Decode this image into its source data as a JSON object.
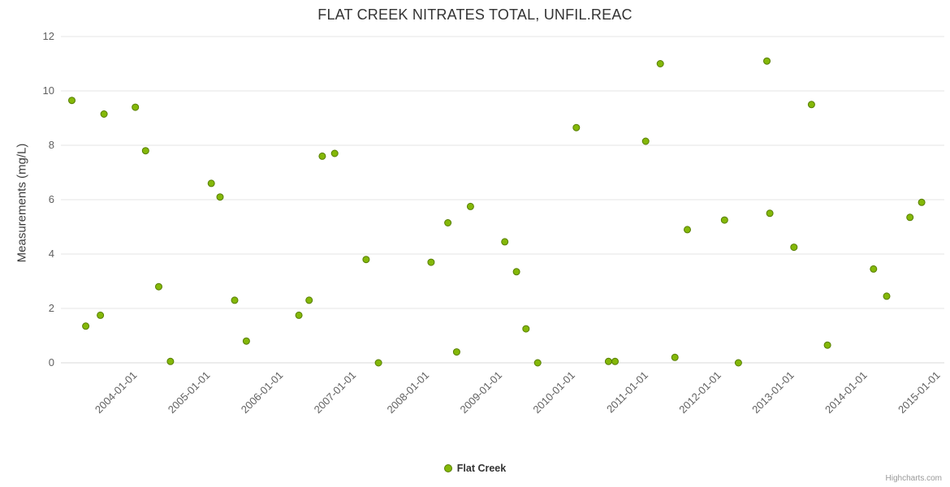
{
  "title": "FLAT CREEK NITRATES TOTAL, UNFIL.REAC",
  "y_axis_title": "Measurements (mg/L)",
  "legend": {
    "label": "Flat Creek"
  },
  "credits": "Highcharts.com",
  "colors": {
    "point_fill": "#84b808",
    "point_stroke": "#567d00",
    "grid": "#e6e6e6",
    "axis_line": "#d8d8d8",
    "axis_text": "#606060",
    "title_text": "#333333"
  },
  "chart_data": {
    "type": "scatter",
    "title": "FLAT CREEK NITRATES TOTAL, UNFIL.REAC",
    "xlabel": "",
    "ylabel": "Measurements (mg/L)",
    "x_unit": "decimal_year",
    "xlim": [
      2002.95,
      2015.05
    ],
    "ylim": [
      0,
      12
    ],
    "y_ticks": [
      0,
      2,
      4,
      6,
      8,
      10,
      12
    ],
    "x_ticks": [
      2004,
      2005,
      2006,
      2007,
      2008,
      2009,
      2010,
      2011,
      2012,
      2013,
      2014,
      2015
    ],
    "x_tick_labels": [
      "2004-01-01",
      "2005-01-01",
      "2006-01-01",
      "2007-01-01",
      "2008-01-01",
      "2009-01-01",
      "2010-01-01",
      "2011-01-01",
      "2012-01-01",
      "2013-01-01",
      "2014-01-01",
      "2015-01-01"
    ],
    "grid": "horizontal",
    "legend_position": "bottom-center",
    "series": [
      {
        "name": "Flat Creek",
        "points": [
          [
            2003.1,
            9.65
          ],
          [
            2003.29,
            1.35
          ],
          [
            2003.49,
            1.75
          ],
          [
            2003.54,
            9.15
          ],
          [
            2003.97,
            9.4
          ],
          [
            2004.11,
            7.8
          ],
          [
            2004.29,
            2.8
          ],
          [
            2004.45,
            0.05
          ],
          [
            2005.01,
            6.6
          ],
          [
            2005.13,
            6.1
          ],
          [
            2005.33,
            2.3
          ],
          [
            2005.49,
            0.8
          ],
          [
            2006.21,
            1.75
          ],
          [
            2006.35,
            2.3
          ],
          [
            2006.53,
            7.6
          ],
          [
            2006.7,
            7.7
          ],
          [
            2007.13,
            3.8
          ],
          [
            2007.3,
            0.0
          ],
          [
            2008.02,
            3.7
          ],
          [
            2008.25,
            5.15
          ],
          [
            2008.37,
            0.4
          ],
          [
            2008.56,
            5.75
          ],
          [
            2009.03,
            4.45
          ],
          [
            2009.19,
            3.35
          ],
          [
            2009.32,
            1.25
          ],
          [
            2009.48,
            0.0
          ],
          [
            2010.01,
            8.65
          ],
          [
            2010.45,
            0.05
          ],
          [
            2010.54,
            0.05
          ],
          [
            2010.96,
            8.15
          ],
          [
            2011.16,
            11.0
          ],
          [
            2011.36,
            0.2
          ],
          [
            2011.53,
            4.9
          ],
          [
            2012.04,
            5.25
          ],
          [
            2012.23,
            0.0
          ],
          [
            2012.62,
            11.1
          ],
          [
            2012.66,
            5.5
          ],
          [
            2012.99,
            4.25
          ],
          [
            2013.23,
            9.5
          ],
          [
            2013.45,
            0.65
          ],
          [
            2014.08,
            3.45
          ],
          [
            2014.26,
            2.45
          ],
          [
            2014.58,
            5.35
          ],
          [
            2014.74,
            5.9
          ]
        ]
      }
    ]
  }
}
